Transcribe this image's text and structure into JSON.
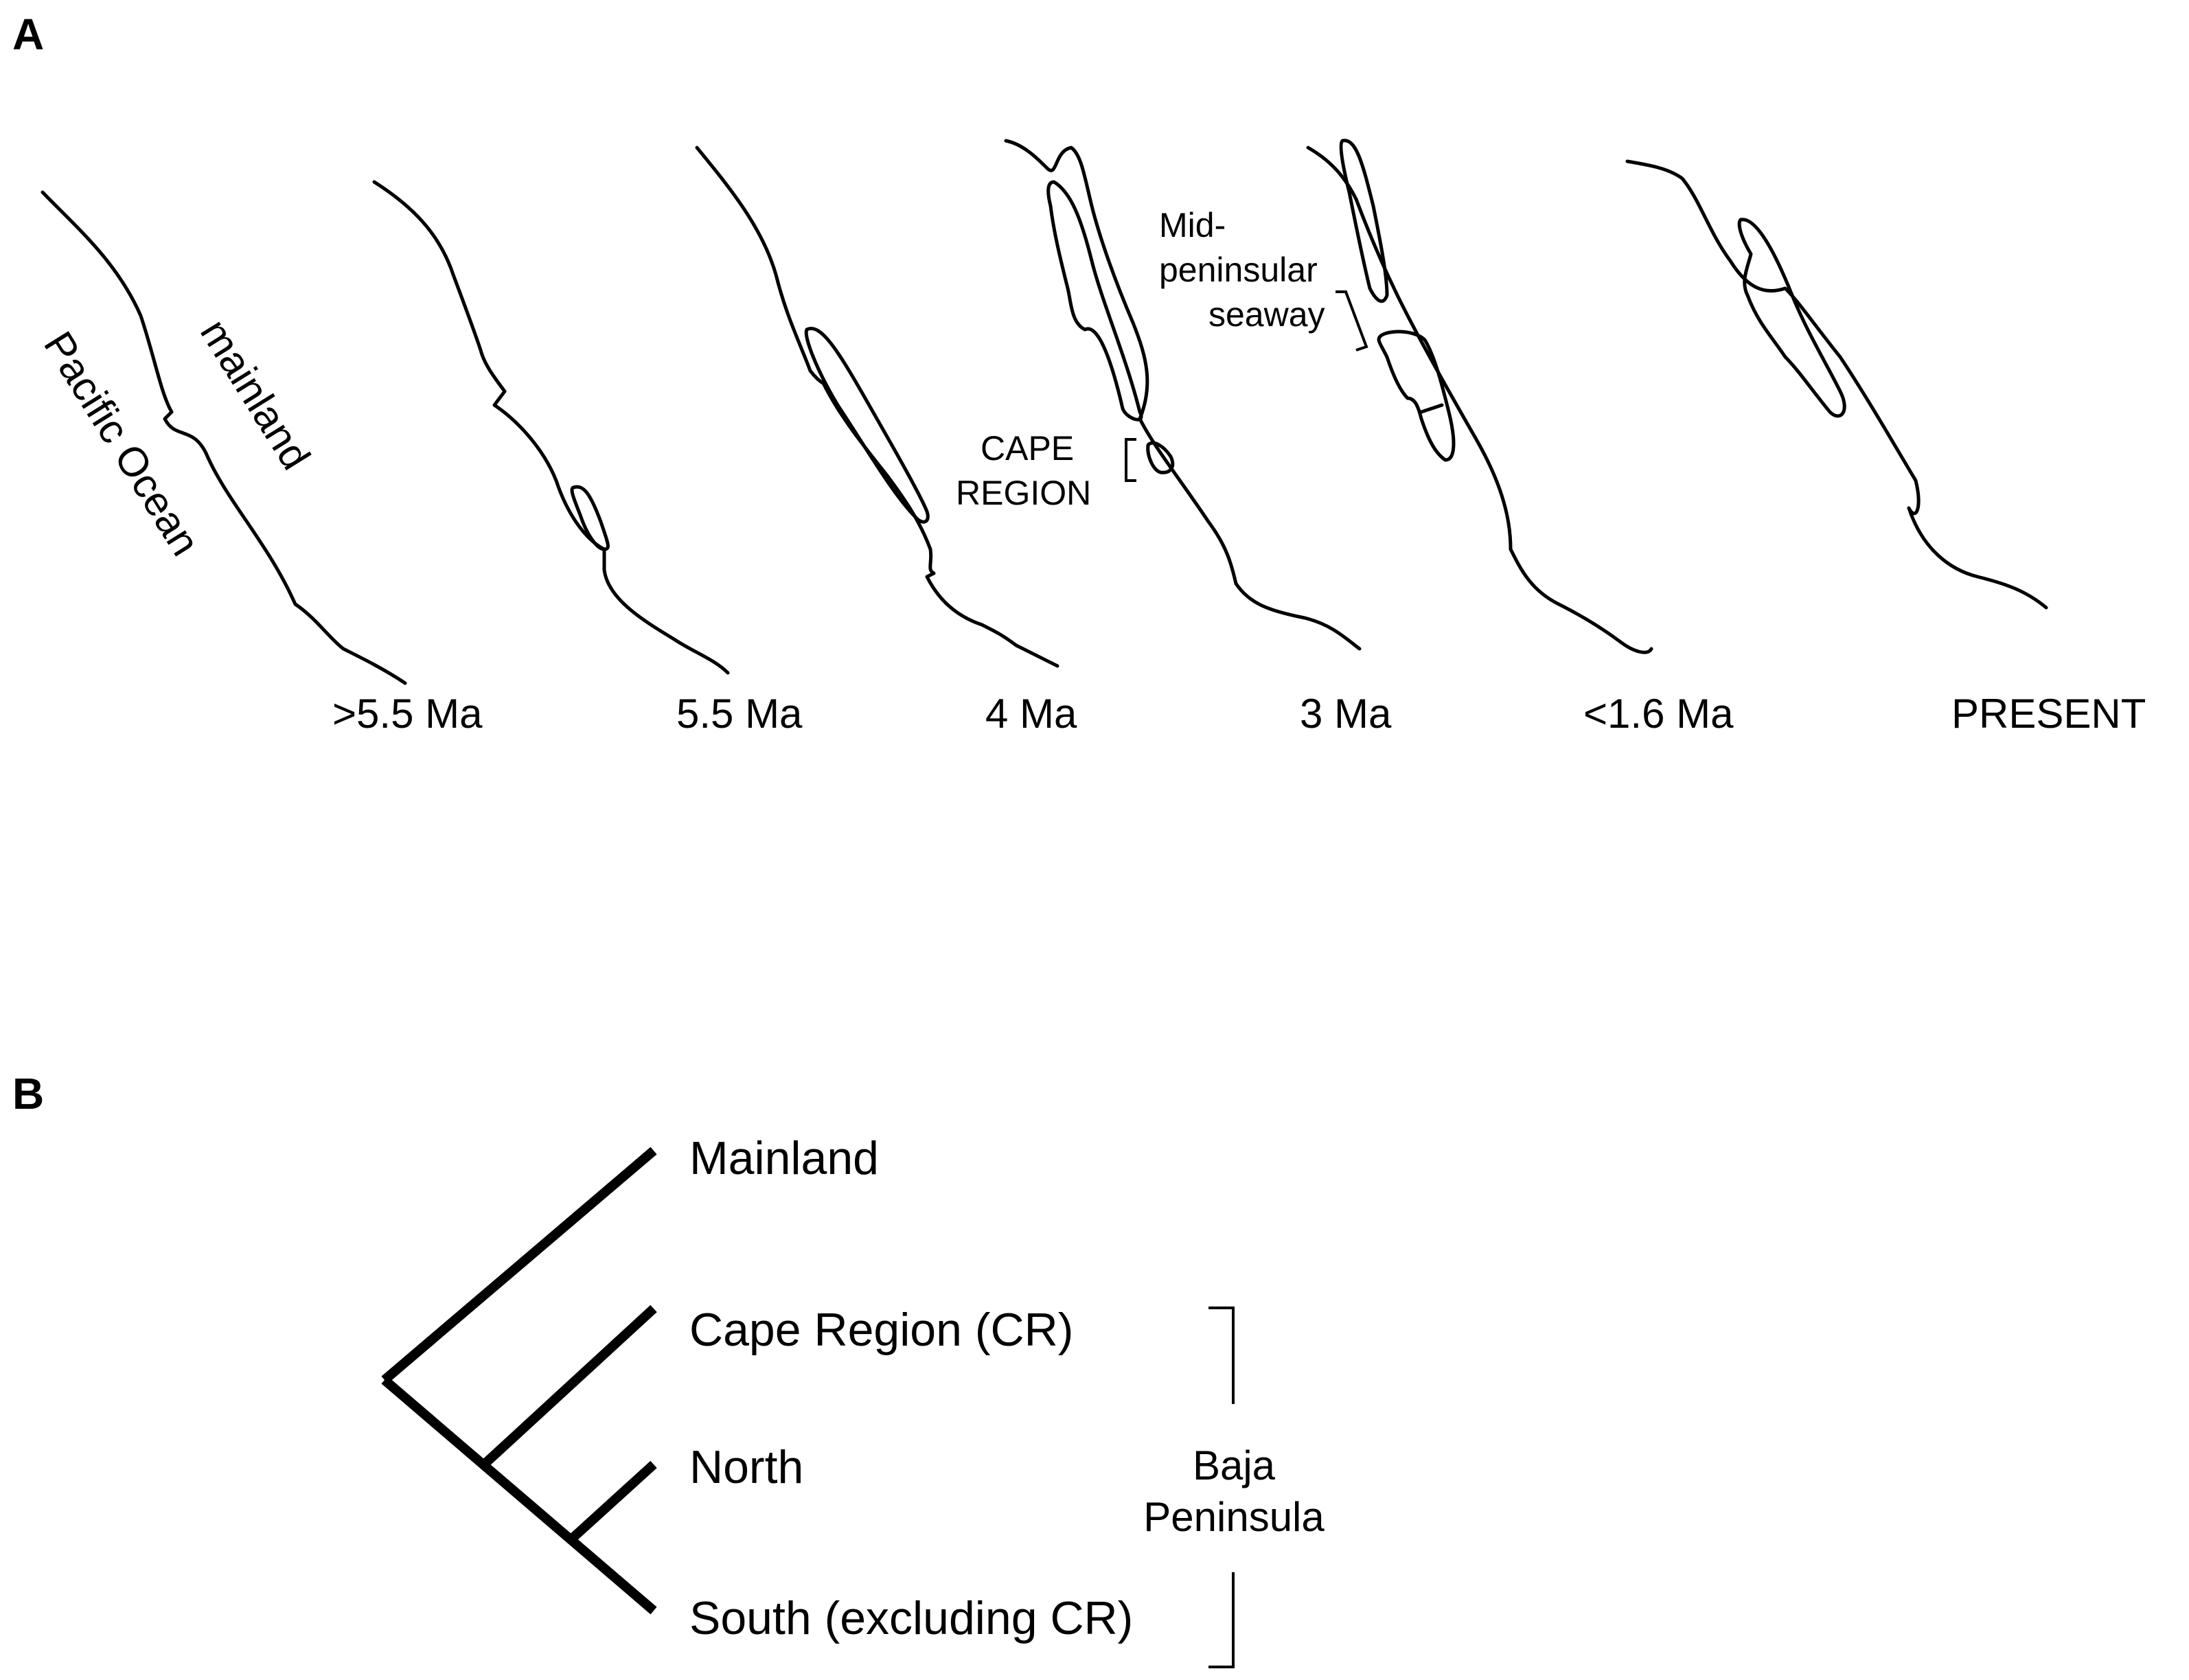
{
  "panel_a": {
    "letter": "A",
    "labels": {
      "ocean": "Pacific Ocean",
      "mainland": "mainland",
      "cape_region_line1": "CAPE",
      "cape_region_line2": "REGION",
      "seaway_line1": "Mid-",
      "seaway_line2": "peninsular",
      "seaway_line3": "seaway"
    },
    "time_points": [
      ">5.5 Ma",
      "5.5 Ma",
      "4 Ma",
      "3 Ma",
      "<1.6 Ma",
      "PRESENT"
    ]
  },
  "panel_b": {
    "letter": "B",
    "taxa": [
      "Mainland",
      "Cape Region (CR)",
      "North",
      "South (excluding CR)"
    ],
    "group_label_line1": "Baja",
    "group_label_line2": "Peninsula"
  }
}
